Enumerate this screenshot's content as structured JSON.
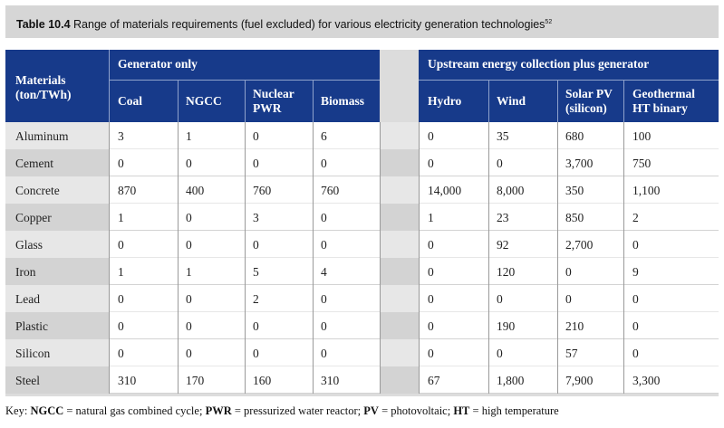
{
  "table": {
    "number": "Table 10.4",
    "title": "Range of materials requirements (fuel excluded) for various electricity generation technologies",
    "footnote": "52"
  },
  "headers": {
    "materials_line1": "Materials",
    "materials_line2": "(ton/TWh)",
    "group_generator": "Generator only",
    "group_upstream": "Upstream energy collection plus generator",
    "columns": [
      {
        "line1": "Coal",
        "line2": ""
      },
      {
        "line1": "NGCC",
        "line2": ""
      },
      {
        "line1": "Nuclear",
        "line2": "PWR"
      },
      {
        "line1": "Biomass",
        "line2": ""
      },
      {
        "line1": "Hydro",
        "line2": ""
      },
      {
        "line1": "Wind",
        "line2": ""
      },
      {
        "line1": "Solar PV",
        "line2": "(silicon)"
      },
      {
        "line1": "Geothermal",
        "line2": "HT binary"
      }
    ]
  },
  "rows": [
    {
      "material": "Aluminum",
      "values": [
        "3",
        "1",
        "0",
        "6",
        "0",
        "35",
        "680",
        "100"
      ]
    },
    {
      "material": "Cement",
      "values": [
        "0",
        "0",
        "0",
        "0",
        "0",
        "0",
        "3,700",
        "750"
      ]
    },
    {
      "material": "Concrete",
      "values": [
        "870",
        "400",
        "760",
        "760",
        "14,000",
        "8,000",
        "350",
        "1,100"
      ]
    },
    {
      "material": "Copper",
      "values": [
        "1",
        "0",
        "3",
        "0",
        "1",
        "23",
        "850",
        "2"
      ]
    },
    {
      "material": "Glass",
      "values": [
        "0",
        "0",
        "0",
        "0",
        "0",
        "92",
        "2,700",
        "0"
      ]
    },
    {
      "material": "Iron",
      "values": [
        "1",
        "1",
        "5",
        "4",
        "0",
        "120",
        "0",
        "9"
      ]
    },
    {
      "material": "Lead",
      "values": [
        "0",
        "0",
        "2",
        "0",
        "0",
        "0",
        "0",
        "0"
      ]
    },
    {
      "material": "Plastic",
      "values": [
        "0",
        "0",
        "0",
        "0",
        "0",
        "190",
        "210",
        "0"
      ]
    },
    {
      "material": "Silicon",
      "values": [
        "0",
        "0",
        "0",
        "0",
        "0",
        "0",
        "57",
        "0"
      ]
    },
    {
      "material": "Steel",
      "values": [
        "310",
        "170",
        "160",
        "310",
        "67",
        "1,800",
        "7,900",
        "3,300"
      ]
    }
  ],
  "key": {
    "prefix": "Key: ",
    "items": [
      {
        "abbr": "NGCC",
        "meaning": " = natural gas combined cycle; "
      },
      {
        "abbr": "PWR",
        "meaning": " = pressurized water reactor; "
      },
      {
        "abbr": "PV",
        "meaning": " = photovoltaic; "
      },
      {
        "abbr": "HT",
        "meaning": " = high temperature"
      }
    ]
  },
  "colors": {
    "header_blue": "#173a8a",
    "caption_gray": "#d6d6d6",
    "row_light": "#e7e7e7",
    "row_dark": "#d3d3d3"
  }
}
